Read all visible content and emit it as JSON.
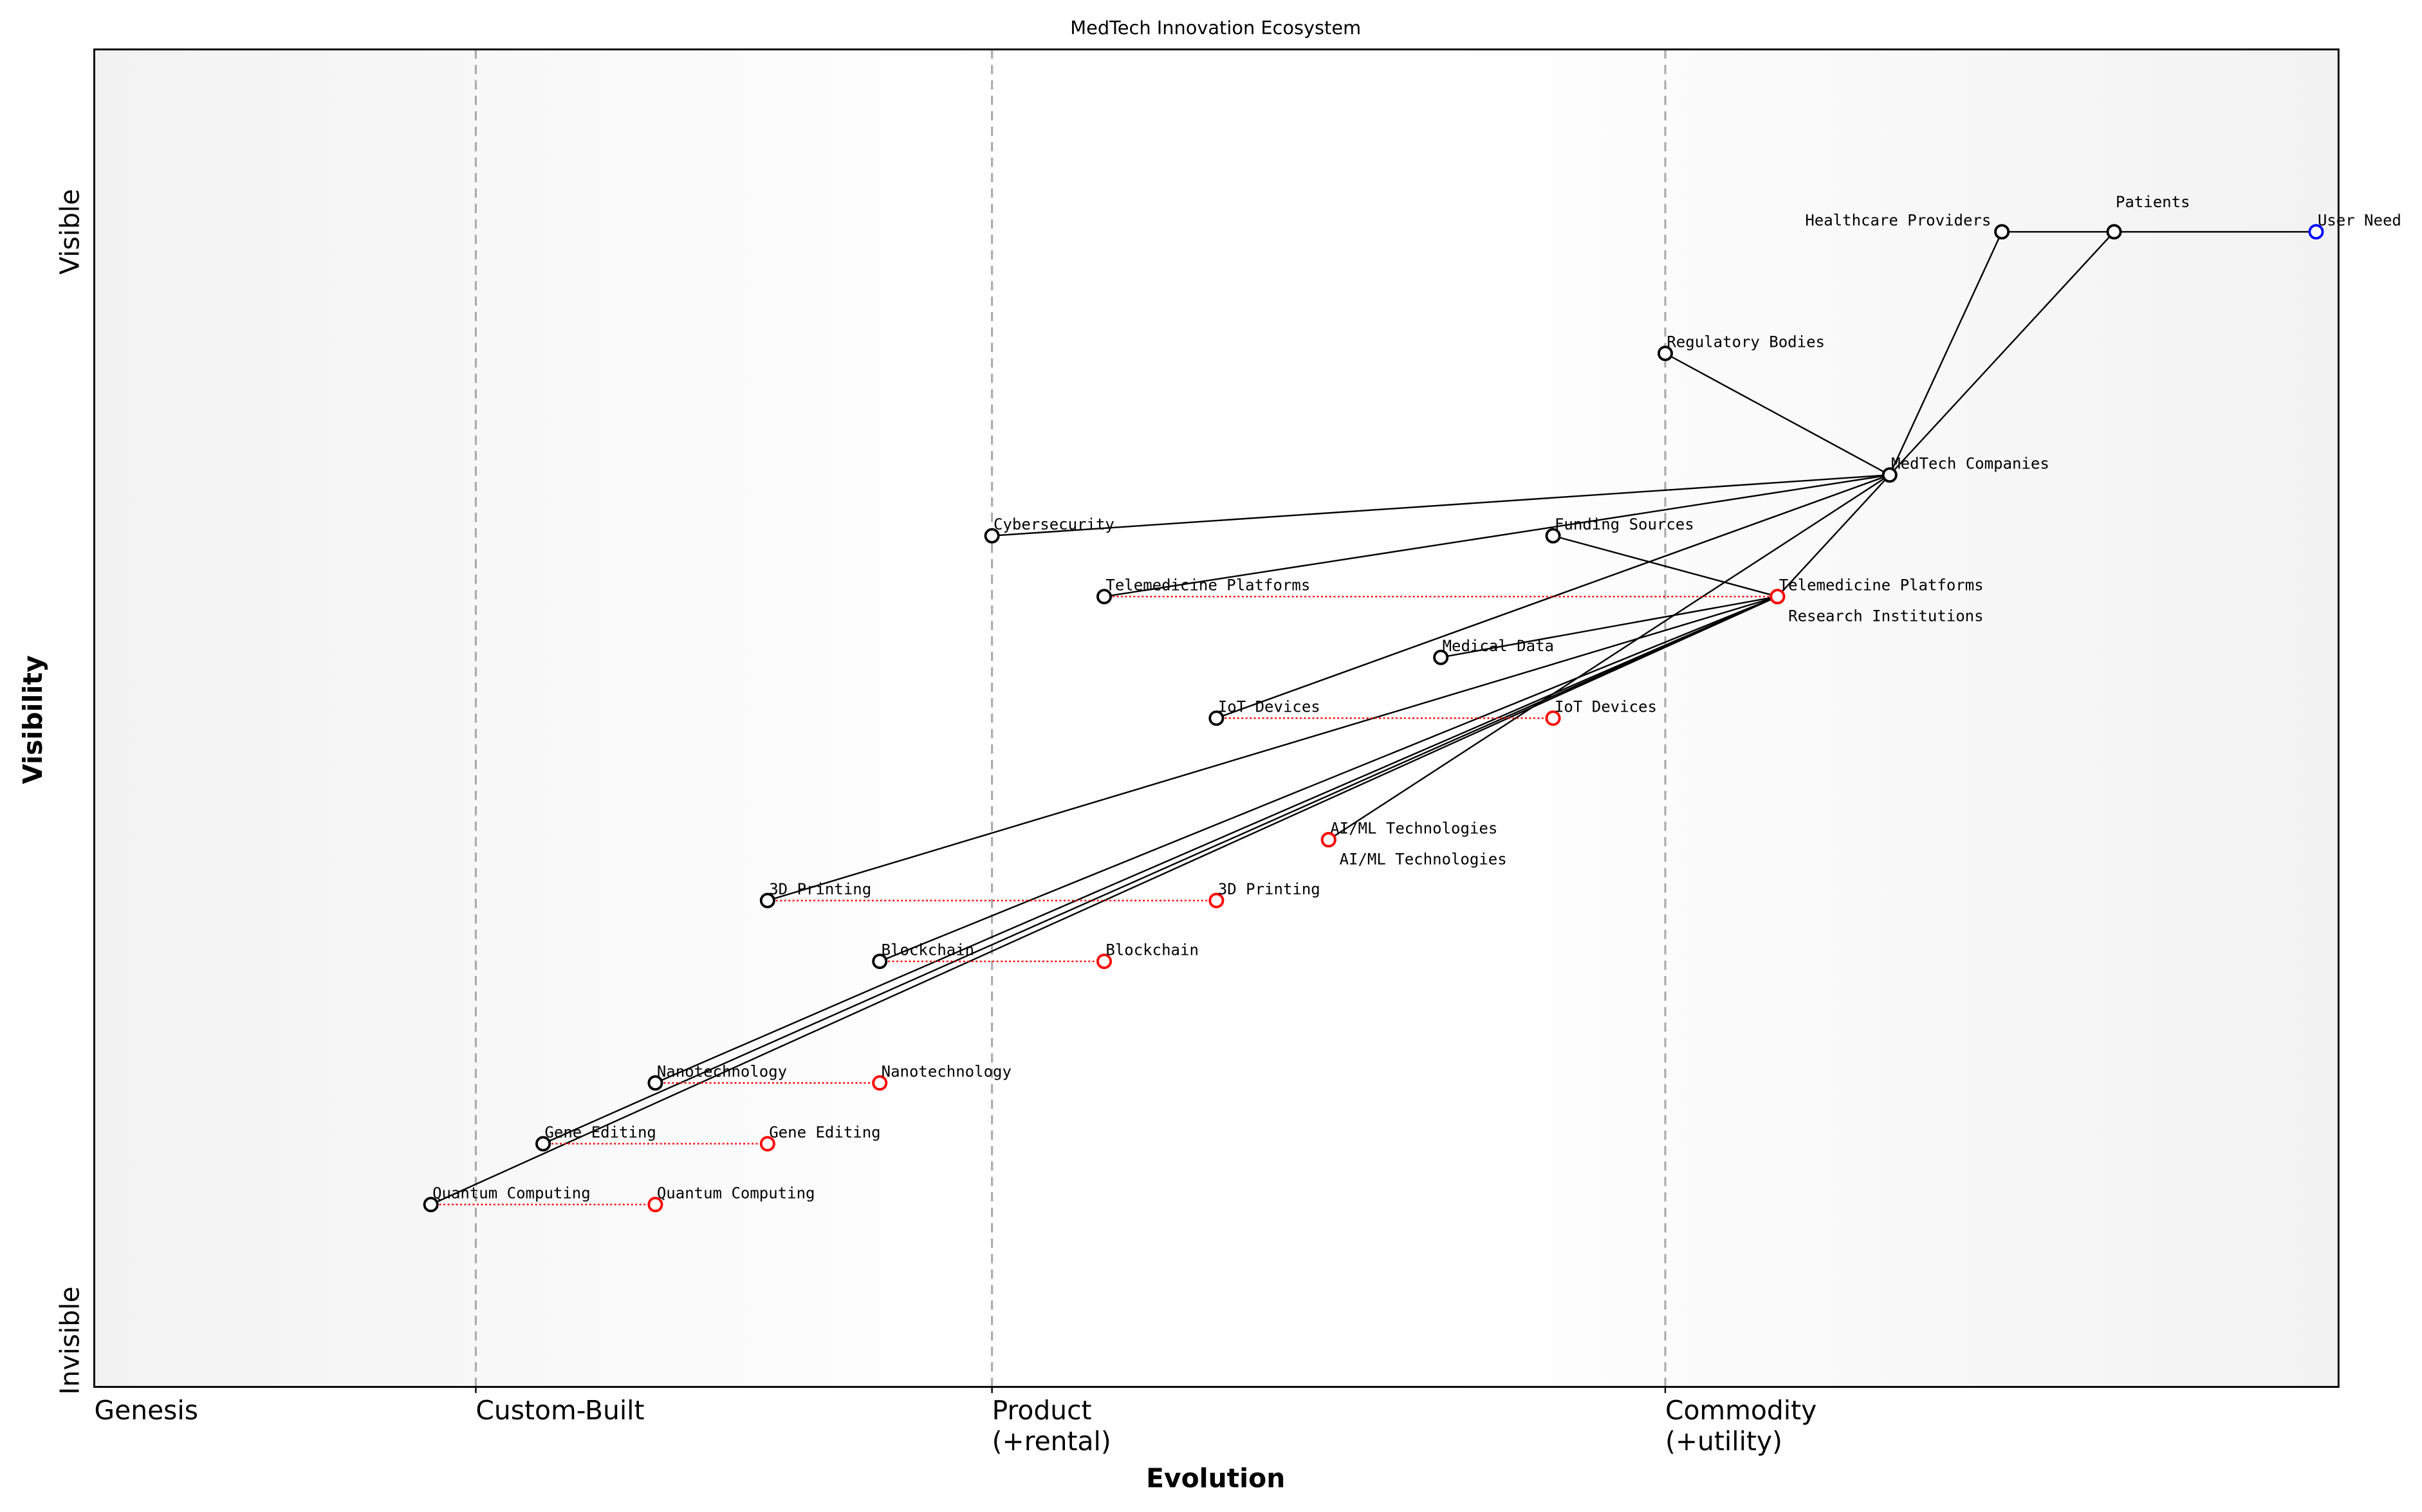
{
  "chart_data": {
    "type": "wardley-map",
    "title": "MedTech Innovation Ecosystem",
    "xlabel": "Evolution",
    "ylabel": "Visibility",
    "xlim": [
      0,
      1
    ],
    "ylim": [
      0,
      1.1
    ],
    "x_stages": [
      {
        "label": "Genesis",
        "x": 0.0
      },
      {
        "label": "Custom-Built",
        "x": 0.17
      },
      {
        "label": "Product\n(+rental)",
        "x": 0.4
      },
      {
        "label": "Commodity\n(+utility)",
        "x": 0.7
      }
    ],
    "y_ticks": [
      {
        "label": "Invisible",
        "y": 0.0
      },
      {
        "label": "Visible",
        "y": 0.95
      }
    ],
    "stage_dividers": [
      0.17,
      0.4,
      0.7
    ],
    "colors": {
      "component": "#000000",
      "user_need": "#0000ff",
      "evolved": "#ff0000",
      "divider": "#aaaaaa",
      "background_edge": "#f2f2f2",
      "background_center": "#ffffff"
    },
    "components": [
      {
        "name": "User Need",
        "x": 0.99,
        "y": 0.95,
        "type": "user_need"
      },
      {
        "name": "Patients",
        "x": 0.9,
        "y": 0.95
      },
      {
        "name": "Healthcare Providers",
        "x": 0.85,
        "y": 0.95
      },
      {
        "name": "Regulatory Bodies",
        "x": 0.7,
        "y": 0.85
      },
      {
        "name": "MedTech Companies",
        "x": 0.8,
        "y": 0.75
      },
      {
        "name": "Cybersecurity",
        "x": 0.4,
        "y": 0.7
      },
      {
        "name": "Funding Sources",
        "x": 0.65,
        "y": 0.7
      },
      {
        "name": "Telemedicine Platforms",
        "x": 0.45,
        "y": 0.65
      },
      {
        "name": "Research Institutions",
        "x": 0.75,
        "y": 0.65
      },
      {
        "name": "Medical Data",
        "x": 0.6,
        "y": 0.6
      },
      {
        "name": "IoT Devices",
        "x": 0.5,
        "y": 0.55
      },
      {
        "name": "AI/ML Technologies",
        "x": 0.55,
        "y": 0.45
      },
      {
        "name": "3D Printing",
        "x": 0.3,
        "y": 0.4
      },
      {
        "name": "Blockchain",
        "x": 0.35,
        "y": 0.35
      },
      {
        "name": "Nanotechnology",
        "x": 0.25,
        "y": 0.25
      },
      {
        "name": "Gene Editing",
        "x": 0.2,
        "y": 0.2
      },
      {
        "name": "Quantum Computing",
        "x": 0.15,
        "y": 0.15
      }
    ],
    "evolutions": [
      {
        "name": "Telemedicine Platforms",
        "to_x": 0.75
      },
      {
        "name": "IoT Devices",
        "to_x": 0.65
      },
      {
        "name": "AI/ML Technologies",
        "to_x": 0.55
      },
      {
        "name": "3D Printing",
        "to_x": 0.5
      },
      {
        "name": "Blockchain",
        "to_x": 0.45
      },
      {
        "name": "Nanotechnology",
        "to_x": 0.35
      },
      {
        "name": "Gene Editing",
        "to_x": 0.3
      },
      {
        "name": "Quantum Computing",
        "to_x": 0.25
      }
    ],
    "links": [
      [
        "User Need",
        "Patients"
      ],
      [
        "Patients",
        "Healthcare Providers"
      ],
      [
        "Patients",
        "MedTech Companies"
      ],
      [
        "Healthcare Providers",
        "MedTech Companies"
      ],
      [
        "MedTech Companies",
        "Regulatory Bodies"
      ],
      [
        "MedTech Companies",
        "Cybersecurity"
      ],
      [
        "MedTech Companies",
        "Telemedicine Platforms"
      ],
      [
        "MedTech Companies",
        "IoT Devices"
      ],
      [
        "MedTech Companies",
        "AI/ML Technologies"
      ],
      [
        "MedTech Companies",
        "Research Institutions"
      ],
      [
        "Research Institutions",
        "Funding Sources"
      ],
      [
        "Research Institutions",
        "Medical Data"
      ],
      [
        "Research Institutions",
        "3D Printing"
      ],
      [
        "Research Institutions",
        "Blockchain"
      ],
      [
        "Research Institutions",
        "Nanotechnology"
      ],
      [
        "Research Institutions",
        "Gene Editing"
      ],
      [
        "Research Institutions",
        "Quantum Computing"
      ]
    ]
  }
}
